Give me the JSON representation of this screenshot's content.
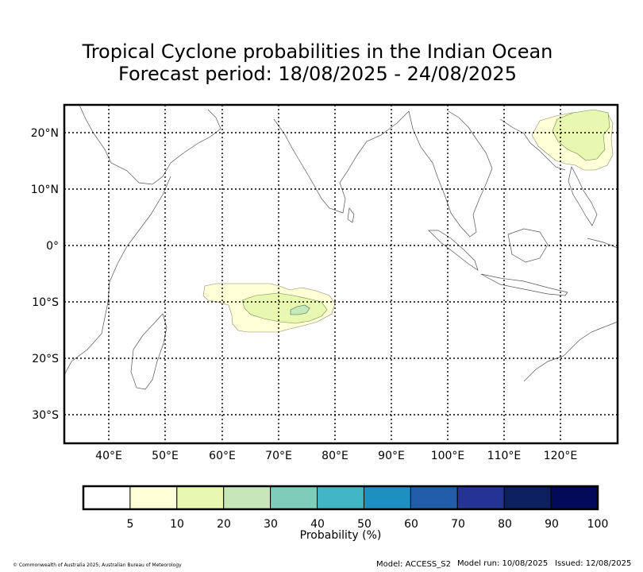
{
  "title": {
    "line1": "Tropical Cyclone probabilities in the Indian Ocean",
    "line2": "Forecast period: 18/08/2025 - 24/08/2025"
  },
  "map": {
    "lon_range": [
      32,
      130
    ],
    "lat_range": [
      -35,
      25
    ],
    "lon_ticks": [
      {
        "value": 40,
        "label": "40°E"
      },
      {
        "value": 50,
        "label": "50°E"
      },
      {
        "value": 60,
        "label": "60°E"
      },
      {
        "value": 70,
        "label": "70°E"
      },
      {
        "value": 80,
        "label": "80°E"
      },
      {
        "value": 90,
        "label": "90°E"
      },
      {
        "value": 100,
        "label": "100°E"
      },
      {
        "value": 110,
        "label": "110°E"
      },
      {
        "value": 120,
        "label": "120°E"
      }
    ],
    "lat_ticks": [
      {
        "value": 20,
        "label": "20°N"
      },
      {
        "value": 10,
        "label": "10°N"
      },
      {
        "value": 0,
        "label": "0°"
      },
      {
        "value": -10,
        "label": "10°S"
      },
      {
        "value": -20,
        "label": "20°S"
      },
      {
        "value": -30,
        "label": "30°S"
      }
    ],
    "gridlines": "dotted",
    "probability_areas": [
      {
        "region": "Central Indian Ocean",
        "levels": [
          "5-10",
          "10-20",
          "20-30"
        ],
        "color_5_10": "#ffffd8",
        "color_10_20": "#e8f8b0",
        "color_20_30": "#c6e8b8"
      },
      {
        "region": "Philippine Sea / South China Sea",
        "levels": [
          "5-10",
          "10-20"
        ],
        "color_5_10": "#ffffd8",
        "color_10_20": "#e8f8b0"
      }
    ]
  },
  "colorbar": {
    "label": "Probability (%)",
    "ticks": [
      "5",
      "10",
      "20",
      "30",
      "40",
      "50",
      "60",
      "70",
      "80",
      "90",
      "100"
    ],
    "colors": [
      "#ffffff",
      "#ffffd8",
      "#e8f8b0",
      "#c6e8b8",
      "#7ecdbb",
      "#42b6c4",
      "#1e90c0",
      "#225ea8",
      "#253394",
      "#0c1f5e",
      "#030a5a"
    ]
  },
  "footer": {
    "copyright": "© Commonwealth of Australia 2025, Australian Bureau of Meteorology",
    "model": "Model: ACCESS_S2",
    "model_run": "Model run: 10/08/2025",
    "issued": "Issued: 12/08/2025"
  }
}
